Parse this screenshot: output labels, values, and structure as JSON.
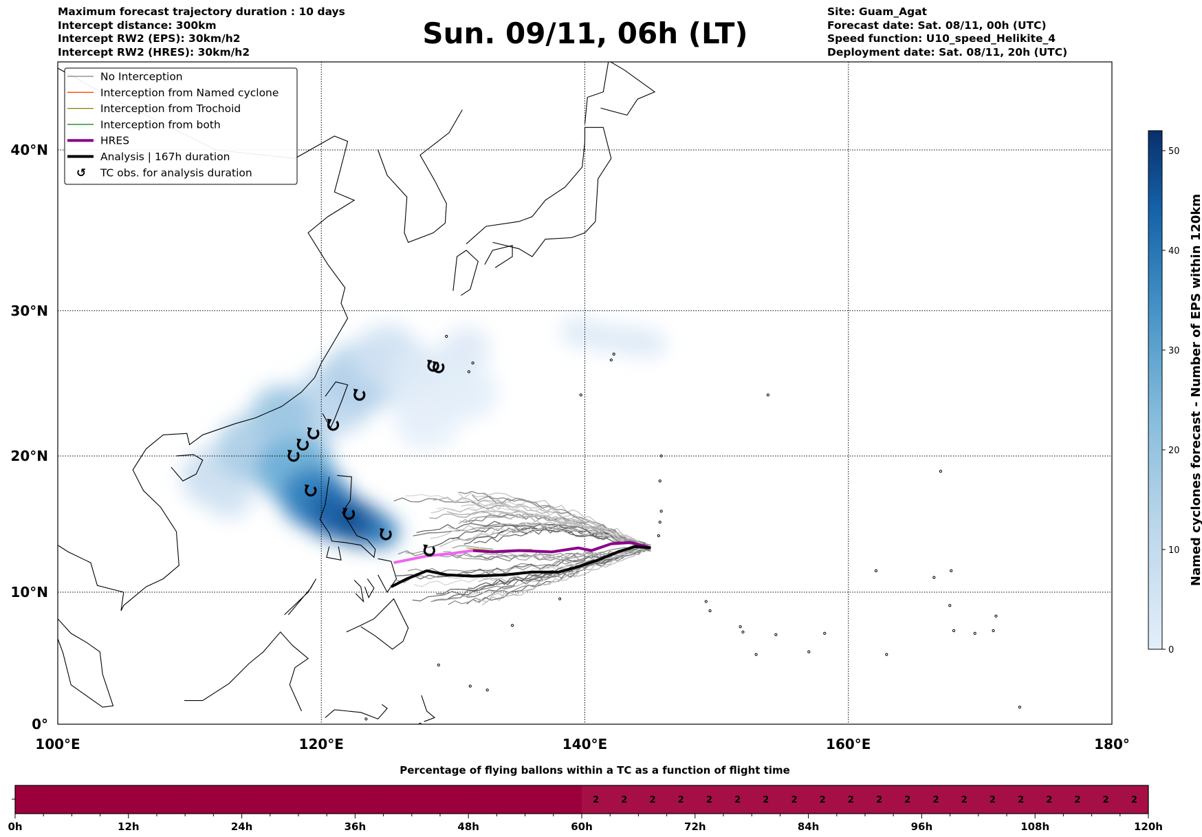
{
  "header": {
    "left": [
      "Maximum forecast trajectory duration : 10 days",
      "Intercept distance: 300km",
      "Intercept RW2 (EPS):  30km/h2",
      "Intercept RW2 (HRES): 30km/h2"
    ],
    "title": "Sun. 09/11, 06h (LT)",
    "right": [
      "Site: Guam_Agat",
      "Forecast date: Sat. 08/11, 00h (UTC)",
      "Speed function: U10_speed_Helikite_4",
      "Deployment date: Sat. 08/11, 20h (UTC)"
    ]
  },
  "map": {
    "lon_labels": [
      "100°E",
      "120°E",
      "140°E",
      "160°E",
      "180°"
    ],
    "lat_labels": [
      "0°",
      "10°N",
      "20°N",
      "30°N",
      "40°N"
    ],
    "lon_ticks": [
      100,
      120,
      140,
      160,
      180
    ],
    "lat_ticks": [
      0,
      10,
      20,
      30,
      40
    ],
    "tc_symbol": "↺"
  },
  "legend": {
    "items": [
      {
        "label": "No Interception",
        "color": "#808080",
        "kind": "line"
      },
      {
        "label": "Interception from Named cyclone",
        "color": "#ff4500",
        "kind": "line"
      },
      {
        "label": "Interception from Trochoid",
        "color": "#808000",
        "kind": "line"
      },
      {
        "label": "Interception from both",
        "color": "#008000",
        "kind": "line"
      },
      {
        "label": "HRES",
        "color": "#8b008b",
        "kind": "thick"
      },
      {
        "label": "Analysis | 167h duration",
        "color": "#000000",
        "kind": "thick"
      },
      {
        "label": "TC obs. for analysis duration",
        "color": "#000000",
        "kind": "symbol"
      }
    ]
  },
  "colorbar": {
    "label": "Named cyclones forecast - Number of EPS within 120km",
    "ticks": [
      "0",
      "10",
      "20",
      "30",
      "40",
      "50"
    ],
    "min": 0,
    "max": 52
  },
  "timeline": {
    "title": "Percentage of flying ballons within a TC as a function of flight time",
    "tick_labels": [
      "0h",
      "12h",
      "24h",
      "36h",
      "48h",
      "60h",
      "72h",
      "84h",
      "96h",
      "108h",
      "120h"
    ],
    "segment_hours": 3,
    "values": [
      "",
      "",
      "",
      "",
      "",
      "",
      "",
      "",
      "",
      "",
      "",
      "",
      "",
      "",
      "",
      "",
      "",
      "",
      "",
      "",
      "2",
      "2",
      "2",
      "2",
      "2",
      "2",
      "2",
      "2",
      "2",
      "2",
      "2",
      "2",
      "2",
      "2",
      "2",
      "2",
      "2",
      "2",
      "2",
      "2"
    ],
    "color_low": "#9b003c",
    "color_high": "#a60f45"
  }
}
